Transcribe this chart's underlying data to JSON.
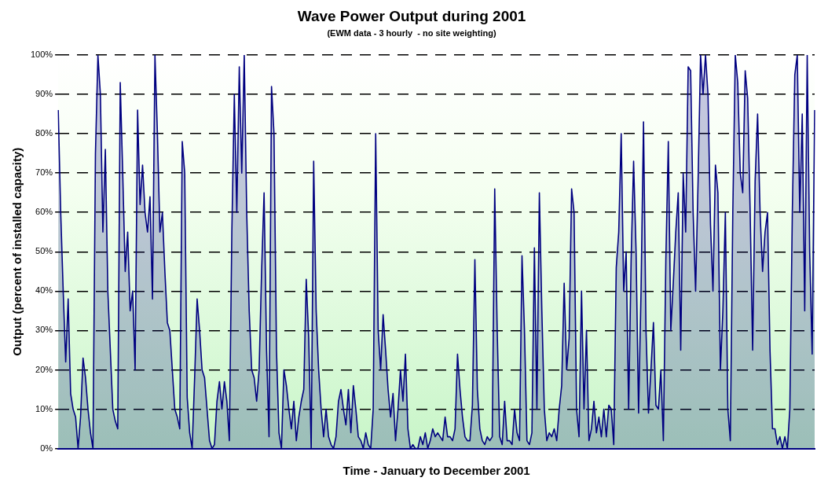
{
  "chart_data": {
    "type": "area",
    "title": "Wave Power Output during 2001",
    "subtitle": "(EWM data - 3 hourly  - no site weighting)",
    "xlabel": "Time - January to December 2001",
    "ylabel": "Output (percent of installed capacity)",
    "categories": [
      null,
      null,
      null,
      null,
      null,
      null,
      null,
      null,
      null,
      null,
      null,
      null,
      null,
      null,
      null,
      null,
      null,
      null,
      null,
      null,
      null,
      null,
      null,
      null,
      null,
      null,
      null,
      null,
      null,
      null,
      null,
      null,
      null,
      null,
      null,
      null,
      null,
      null,
      null,
      null,
      null,
      null,
      null,
      null,
      null,
      null,
      null,
      null,
      null,
      null,
      null,
      null,
      null,
      null,
      null,
      null,
      null,
      null,
      null,
      null,
      null,
      null,
      null,
      null,
      null,
      null,
      null,
      null,
      null,
      null,
      null,
      null,
      null,
      null,
      null,
      null,
      null,
      null,
      null,
      null,
      null,
      null,
      null,
      null,
      null,
      null,
      null,
      null,
      null,
      null,
      null,
      null,
      null,
      null,
      null,
      null,
      null,
      null,
      null,
      null,
      null,
      null,
      null,
      null,
      null,
      null,
      null,
      null,
      null,
      null,
      null,
      null,
      null,
      null,
      null,
      null,
      null,
      null,
      null,
      null,
      null,
      null,
      null,
      null,
      null,
      null,
      null,
      null,
      null,
      null,
      null,
      null,
      null,
      null,
      null,
      null,
      null,
      null,
      null,
      null,
      null,
      null,
      null,
      null,
      null,
      null,
      null,
      null,
      null,
      null,
      null,
      null,
      null,
      null,
      null,
      null,
      null,
      null,
      null,
      null,
      null,
      null,
      null,
      null,
      null,
      null,
      null,
      null,
      null,
      null,
      null,
      null,
      null,
      null,
      null,
      null,
      null,
      null,
      null,
      null,
      null,
      null,
      null,
      null,
      null,
      null,
      null,
      null,
      null,
      null,
      null,
      null,
      null,
      null,
      null,
      null,
      null,
      null,
      null,
      null,
      null,
      null,
      null,
      null,
      null,
      null,
      null,
      null,
      null,
      null,
      null,
      null,
      null,
      null,
      null,
      null,
      null,
      null,
      null,
      null,
      null,
      null,
      null,
      null,
      null,
      null,
      null,
      null,
      null,
      null,
      null,
      null,
      null,
      null,
      null,
      null,
      null,
      null,
      null,
      null,
      null,
      null,
      null,
      null,
      null,
      null,
      null,
      null,
      null,
      null,
      null,
      null,
      null,
      null,
      null,
      null,
      null,
      null,
      null,
      null,
      null,
      null,
      null,
      null,
      null,
      null,
      null,
      null,
      null,
      null,
      null,
      null,
      null,
      null,
      null,
      null,
      null,
      null,
      null,
      null,
      null,
      null,
      null,
      null,
      null,
      null,
      null,
      null,
      null,
      null,
      null,
      null,
      null,
      null,
      null,
      null,
      null,
      null,
      null,
      null,
      null,
      null,
      null,
      null,
      null,
      null
    ],
    "series": [
      {
        "color": "#000080",
        "values": [
          86,
          60,
          40,
          22,
          38,
          14,
          10,
          8,
          0,
          8,
          23,
          18,
          10,
          4,
          0,
          75,
          100,
          90,
          55,
          76,
          40,
          25,
          10,
          7,
          5,
          93,
          70,
          45,
          55,
          35,
          40,
          20,
          86,
          62,
          72,
          60,
          55,
          64,
          38,
          100,
          80,
          55,
          60,
          45,
          32,
          30,
          20,
          10,
          8,
          5,
          78,
          70,
          13,
          4,
          0,
          18,
          38,
          30,
          20,
          18,
          10,
          2,
          0,
          1,
          12,
          17,
          10,
          17,
          12,
          2,
          55,
          90,
          60,
          97,
          70,
          100,
          60,
          35,
          20,
          18,
          12,
          20,
          45,
          65,
          25,
          3,
          92,
          80,
          25,
          4,
          0,
          20,
          16,
          10,
          5,
          12,
          2,
          8,
          12,
          15,
          43,
          28,
          0,
          73,
          35,
          20,
          10,
          3,
          10,
          3,
          1,
          0,
          3,
          12,
          15,
          10,
          6,
          15,
          4,
          16,
          10,
          3,
          2,
          0,
          4,
          1,
          0,
          10,
          80,
          30,
          20,
          34,
          25,
          15,
          8,
          14,
          2,
          10,
          20,
          12,
          24,
          5,
          0,
          1,
          0,
          0,
          3,
          1,
          4,
          0,
          2,
          5,
          3,
          4,
          3,
          2,
          8,
          3,
          3,
          2,
          5,
          24,
          15,
          8,
          3,
          2,
          2,
          11,
          48,
          15,
          5,
          2,
          1,
          3,
          2,
          3,
          66,
          30,
          3,
          1,
          12,
          2,
          2,
          1,
          10,
          4,
          2,
          49,
          30,
          2,
          1,
          4,
          51,
          10,
          65,
          35,
          10,
          2,
          4,
          3,
          5,
          2,
          10,
          16,
          42,
          20,
          28,
          66,
          60,
          10,
          3,
          40,
          10,
          30,
          2,
          5,
          12,
          4,
          8,
          3,
          10,
          3,
          11,
          10,
          1,
          46,
          55,
          80,
          40,
          50,
          10,
          48,
          73,
          50,
          9,
          40,
          83,
          30,
          9,
          20,
          32,
          11,
          10,
          20,
          2,
          48,
          78,
          30,
          42,
          55,
          65,
          25,
          70,
          55,
          97,
          96,
          60,
          40,
          68,
          100,
          90,
          100,
          90,
          57,
          40,
          72,
          65,
          20,
          35,
          60,
          10,
          2,
          60,
          100,
          93,
          70,
          65,
          96,
          89,
          60,
          25,
          68,
          85,
          60,
          45,
          55,
          60,
          25,
          5,
          5,
          1,
          3,
          0,
          3,
          0,
          10,
          60,
          95,
          100,
          60,
          85,
          35,
          100,
          50,
          24,
          86
        ]
      }
    ],
    "ylim": [
      0,
      100
    ],
    "yticks": [
      {
        "value": 0,
        "label": "0%"
      },
      {
        "value": 10,
        "label": "10%"
      },
      {
        "value": 20,
        "label": "20%"
      },
      {
        "value": 30,
        "label": "30%"
      },
      {
        "value": 40,
        "label": "40%"
      },
      {
        "value": 50,
        "label": "50%"
      },
      {
        "value": 60,
        "label": "60%"
      },
      {
        "value": 70,
        "label": "70%"
      },
      {
        "value": 80,
        "label": "80%"
      },
      {
        "value": 90,
        "label": "90%"
      },
      {
        "value": 100,
        "label": "100%"
      }
    ],
    "grid": "y",
    "line_style": "solid",
    "marker": "none",
    "legend": false
  }
}
